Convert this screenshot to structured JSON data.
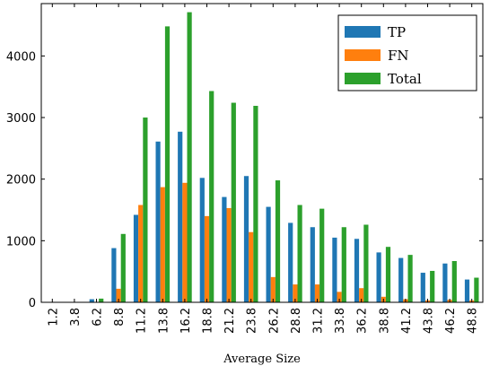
{
  "chart_data": {
    "type": "bar",
    "xlabel": "Average Size",
    "ylabel": "",
    "ylim": [
      0,
      4850
    ],
    "yticks": [
      0,
      1000,
      2000,
      3000,
      4000
    ],
    "categories": [
      "1.2",
      "3.8",
      "6.2",
      "8.8",
      "11.2",
      "13.8",
      "16.2",
      "18.8",
      "21.2",
      "23.8",
      "26.2",
      "28.8",
      "31.2",
      "33.8",
      "36.2",
      "38.8",
      "41.2",
      "43.8",
      "46.2",
      "48.8"
    ],
    "series": [
      {
        "name": "TP",
        "color": "#1f77b4",
        "values": [
          0,
          0,
          50,
          880,
          1420,
          2610,
          2770,
          2020,
          1710,
          2050,
          1550,
          1290,
          1220,
          1050,
          1030,
          810,
          720,
          480,
          630,
          370
        ]
      },
      {
        "name": "FN",
        "color": "#ff7f0e",
        "values": [
          0,
          0,
          5,
          220,
          1580,
          1870,
          1940,
          1400,
          1530,
          1140,
          410,
          290,
          290,
          170,
          230,
          90,
          50,
          30,
          40,
          30
        ]
      },
      {
        "name": "Total",
        "color": "#2ca02c",
        "values": [
          0,
          0,
          60,
          1110,
          3000,
          4480,
          4710,
          3430,
          3240,
          3190,
          1980,
          1580,
          1520,
          1220,
          1260,
          900,
          770,
          510,
          670,
          400
        ]
      }
    ],
    "legend_position": "top-right",
    "grid": false
  }
}
